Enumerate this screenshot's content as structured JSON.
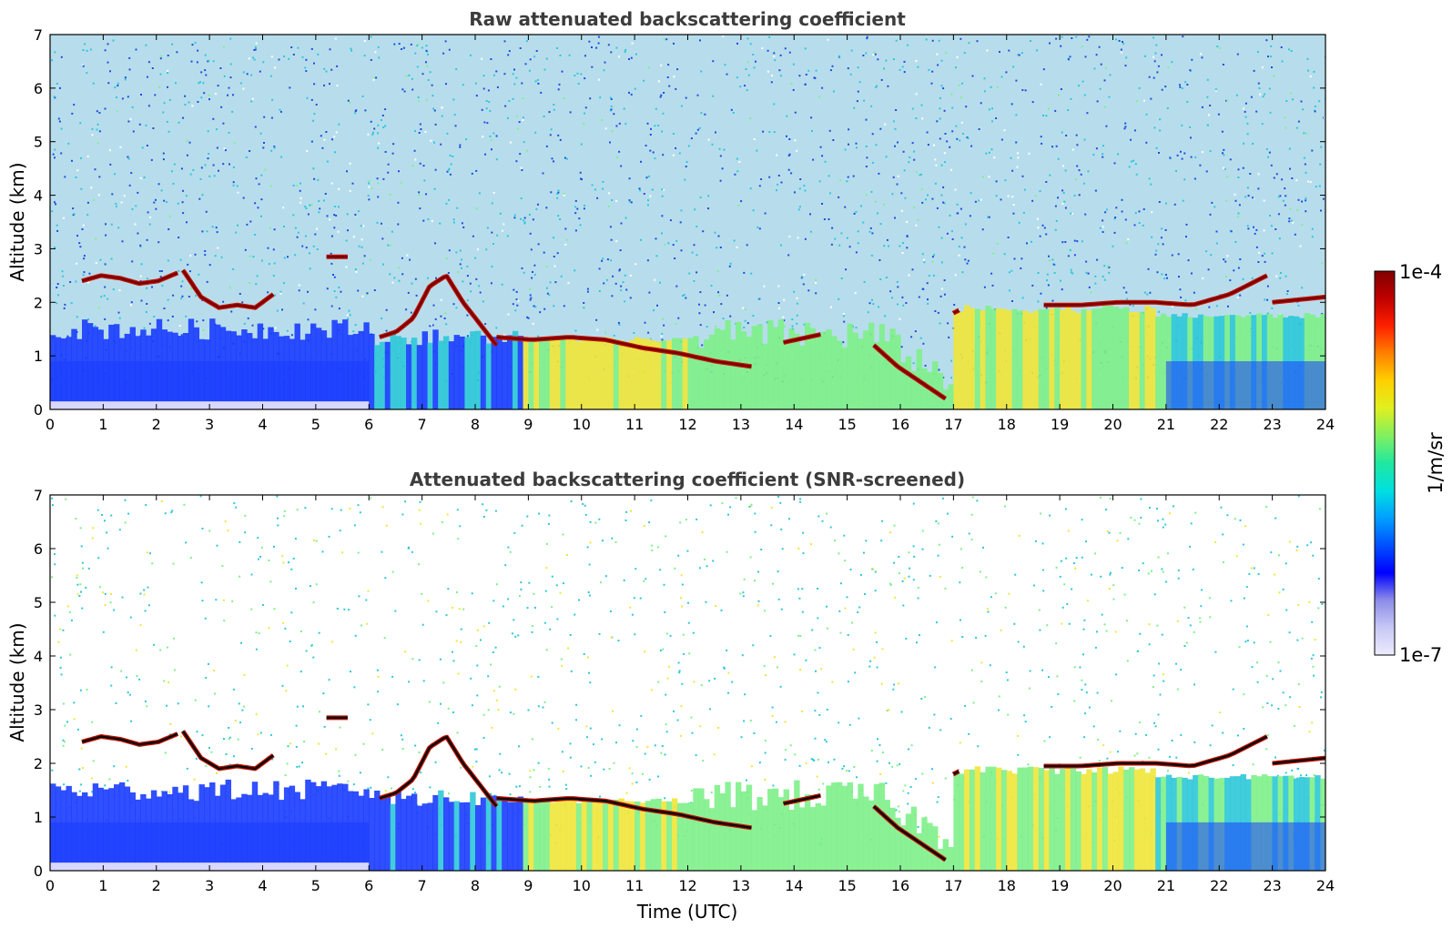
{
  "chart_data": [
    {
      "type": "heatmap",
      "title": "Raw attenuated backscattering coefficient",
      "xlabel": "",
      "ylabel": "Altitude (km)",
      "xlim": [
        0,
        24
      ],
      "ylim": [
        0,
        7
      ],
      "x_ticks": [
        0,
        1,
        2,
        3,
        4,
        5,
        6,
        7,
        8,
        9,
        10,
        11,
        12,
        13,
        14,
        15,
        16,
        17,
        18,
        19,
        20,
        21,
        22,
        23,
        24
      ],
      "y_ticks": [
        0,
        1,
        2,
        3,
        4,
        5,
        6,
        7
      ],
      "screened": false,
      "cloud_layers": [
        {
          "start": 0.6,
          "end": 2.4,
          "altitude": [
            2.4,
            2.5,
            2.45,
            2.35,
            2.4,
            2.55
          ]
        },
        {
          "start": 2.5,
          "end": 4.2,
          "altitude": [
            2.6,
            2.1,
            1.9,
            1.95,
            1.9,
            2.15
          ]
        },
        {
          "start": 5.2,
          "end": 5.6,
          "altitude": [
            2.85,
            2.85
          ]
        },
        {
          "start": 6.2,
          "end": 8.4,
          "altitude": [
            1.35,
            1.45,
            1.7,
            2.3,
            2.5,
            2.0,
            1.6,
            1.2
          ]
        },
        {
          "start": 8.4,
          "end": 13.2,
          "altitude": [
            1.35,
            1.3,
            1.35,
            1.3,
            1.15,
            1.05,
            0.9,
            0.8
          ]
        },
        {
          "start": 13.8,
          "end": 14.5,
          "altitude": [
            1.25,
            1.4
          ]
        },
        {
          "start": 15.5,
          "end": 16.85,
          "altitude": [
            1.2,
            0.8,
            0.5,
            0.2
          ]
        },
        {
          "start": 17.0,
          "end": 17.1,
          "altitude": [
            1.8,
            1.85
          ]
        },
        {
          "start": 18.7,
          "end": 22.9,
          "altitude": [
            1.95,
            1.95,
            2.0,
            2.0,
            1.95,
            2.15,
            2.5
          ]
        },
        {
          "start": 23.0,
          "end": 24.0,
          "altitude": [
            2.0,
            2.05,
            2.1
          ]
        }
      ]
    },
    {
      "type": "heatmap",
      "title": "Attenuated backscattering coefficient (SNR-screened)",
      "xlabel": "Time (UTC)",
      "ylabel": "Altitude (km)",
      "xlim": [
        0,
        24
      ],
      "ylim": [
        0,
        7
      ],
      "x_ticks": [
        0,
        1,
        2,
        3,
        4,
        5,
        6,
        7,
        8,
        9,
        10,
        11,
        12,
        13,
        14,
        15,
        16,
        17,
        18,
        19,
        20,
        21,
        22,
        23,
        24
      ],
      "y_ticks": [
        0,
        1,
        2,
        3,
        4,
        5,
        6,
        7
      ],
      "screened": true,
      "cloud_layers": [
        {
          "start": 0.6,
          "end": 2.4,
          "altitude": [
            2.4,
            2.5,
            2.45,
            2.35,
            2.4,
            2.55
          ]
        },
        {
          "start": 2.5,
          "end": 4.2,
          "altitude": [
            2.6,
            2.1,
            1.9,
            1.95,
            1.9,
            2.15
          ]
        },
        {
          "start": 5.2,
          "end": 5.6,
          "altitude": [
            2.85,
            2.85
          ]
        },
        {
          "start": 6.2,
          "end": 8.4,
          "altitude": [
            1.35,
            1.45,
            1.7,
            2.3,
            2.5,
            2.0,
            1.6,
            1.2
          ]
        },
        {
          "start": 8.4,
          "end": 13.2,
          "altitude": [
            1.35,
            1.3,
            1.35,
            1.3,
            1.15,
            1.05,
            0.9,
            0.8
          ]
        },
        {
          "start": 13.8,
          "end": 14.5,
          "altitude": [
            1.25,
            1.4
          ]
        },
        {
          "start": 15.5,
          "end": 16.85,
          "altitude": [
            1.2,
            0.8,
            0.5,
            0.2
          ]
        },
        {
          "start": 17.0,
          "end": 17.1,
          "altitude": [
            1.8,
            1.85
          ]
        },
        {
          "start": 18.7,
          "end": 22.9,
          "altitude": [
            1.95,
            1.95,
            2.0,
            2.0,
            1.95,
            2.15,
            2.5
          ]
        },
        {
          "start": 23.0,
          "end": 24.0,
          "altitude": [
            2.0,
            2.05,
            2.1
          ]
        }
      ]
    }
  ],
  "colorbar": {
    "label": "1/m/sr",
    "max_label": "1e-4",
    "min_label": "1e-7",
    "scale": "log",
    "range": [
      1e-07,
      0.0001
    ],
    "colormap": "jet",
    "stops": [
      "#ecebff",
      "#c8c8f5",
      "#8c8ce8",
      "#0000ff",
      "#0050ff",
      "#00a0ff",
      "#00e0e0",
      "#20e8a0",
      "#80f060",
      "#e0f020",
      "#ffd000",
      "#ff8000",
      "#ff2000",
      "#c00000",
      "#800000"
    ]
  },
  "colors": {
    "title": "#3c3c3c",
    "noise_blue": "#1e4de0",
    "noise_cyan": "#2ec8d8",
    "boundary_layer_blue": "#1a3cff",
    "aerosol_green": "#7ef08a",
    "aerosol_yellow": "#f0e63a",
    "cloud_red": "#c01200",
    "cloud_black": "#0a0a0a"
  }
}
